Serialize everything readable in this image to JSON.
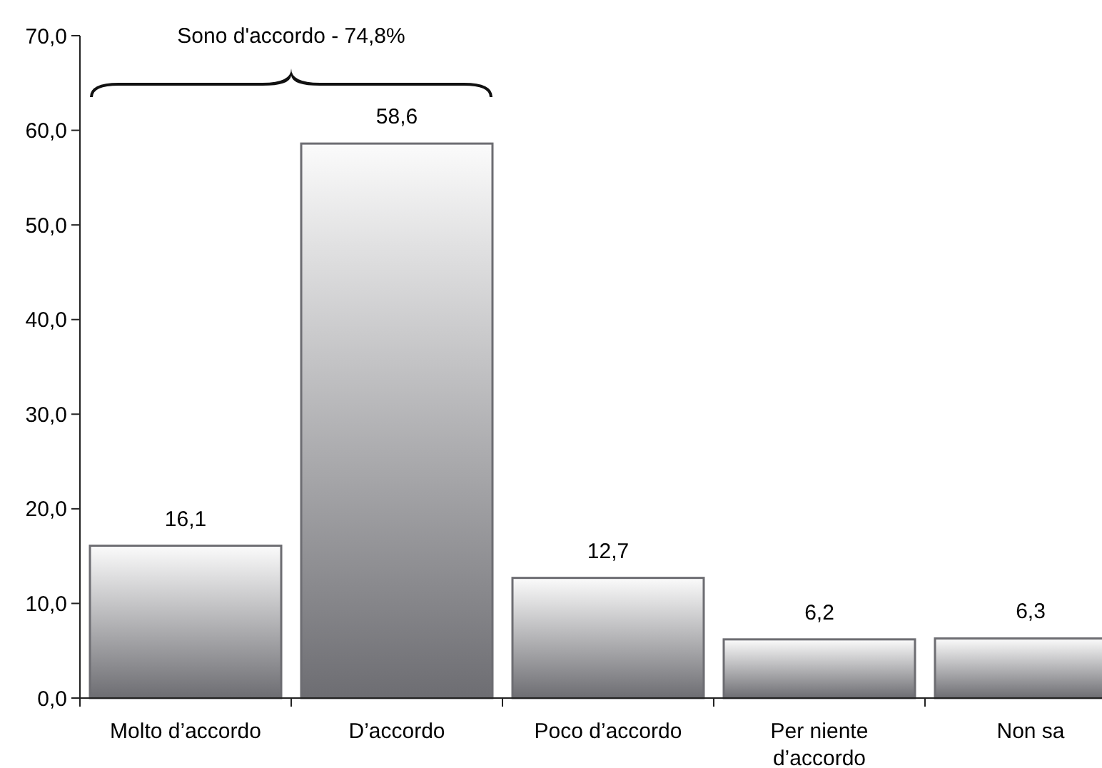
{
  "chart_data": {
    "type": "bar",
    "categories": [
      "Molto d’accordo",
      "D’accordo",
      "Poco d’accordo",
      "Per niente d’accordo",
      "Non sa"
    ],
    "values": [
      16.1,
      58.6,
      12.7,
      6.2,
      6.3
    ],
    "value_labels": [
      "16,1",
      "58,6",
      "12,7",
      "6,2",
      "6,3"
    ],
    "color": "#6d6d72",
    "ylim": [
      0,
      70
    ],
    "yticks": [
      {
        "value": 0,
        "label": "0,0"
      },
      {
        "value": 10,
        "label": "10,0"
      },
      {
        "value": 20,
        "label": "20,0"
      },
      {
        "value": 30,
        "label": "30,0"
      },
      {
        "value": 40,
        "label": "40,0"
      },
      {
        "value": 50,
        "label": "50,0"
      },
      {
        "value": 60,
        "label": "60,0"
      },
      {
        "value": 70,
        "label": "70,0"
      }
    ],
    "annotations": [
      "Sono d'accordo - 74,8%"
    ],
    "grid": false
  }
}
